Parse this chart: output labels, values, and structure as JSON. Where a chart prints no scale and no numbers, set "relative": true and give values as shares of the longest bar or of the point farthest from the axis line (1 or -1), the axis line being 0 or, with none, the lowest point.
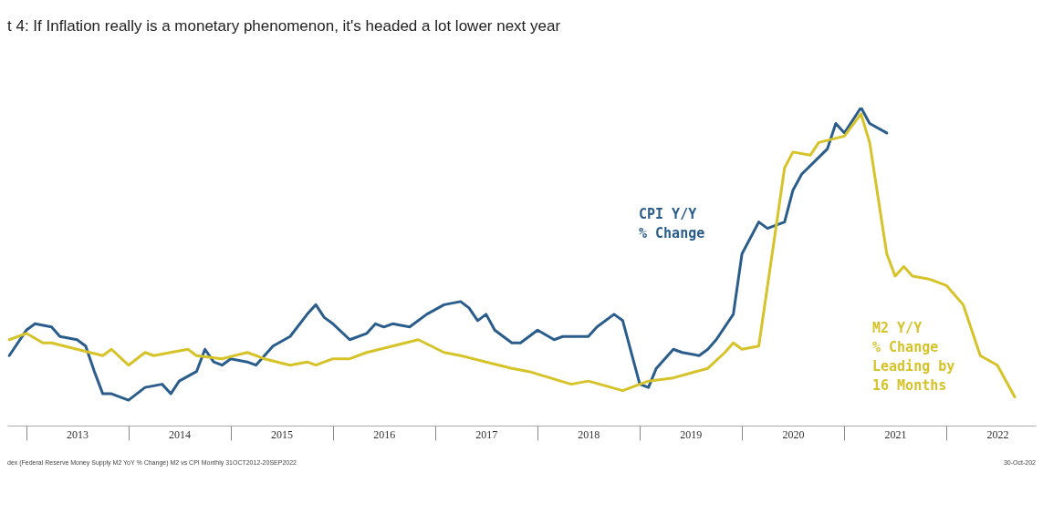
{
  "chart_data": {
    "type": "line",
    "title": "t 4: If Inflation really is a monetary phenomenon, it's headed a lot lower next year",
    "relative": true,
    "annotations": [
      "dex (Federal Reserve Money Supply M2 YoY % Change) M2 vs CPI Monthly 31OCT2012-20SEP2022",
      "30-Oct-202"
    ],
    "xlim": [
      "2012-10-25",
      "2022-11-15"
    ],
    "xticks": [
      {
        "value": "2013-01",
        "label": null
      },
      {
        "value": "2013-07",
        "label": "2013"
      },
      {
        "value": "2014-01",
        "label": null
      },
      {
        "value": "2014-07",
        "label": "2014"
      },
      {
        "value": "2015-01",
        "label": null
      },
      {
        "value": "2015-07",
        "label": "2015"
      },
      {
        "value": "2016-01",
        "label": null
      },
      {
        "value": "2016-07",
        "label": "2016"
      },
      {
        "value": "2017-01",
        "label": null
      },
      {
        "value": "2017-07",
        "label": "2017"
      },
      {
        "value": "2018-01",
        "label": null
      },
      {
        "value": "2018-07",
        "label": "2018"
      },
      {
        "value": "2019-01",
        "label": null
      },
      {
        "value": "2019-07",
        "label": "2019"
      },
      {
        "value": "2020-01",
        "label": null
      },
      {
        "value": "2020-07",
        "label": "2020"
      },
      {
        "value": "2021-01",
        "label": null
      },
      {
        "value": "2021-07",
        "label": "2021"
      },
      {
        "value": "2022-01",
        "label": null
      },
      {
        "value": "2022-07",
        "label": "2022"
      }
    ],
    "series": [
      {
        "name": "CPI Y/Y % Change",
        "color": "#2a5d8c",
        "x": [
          "2012-11",
          "2013-01",
          "2013-02",
          "2013-04",
          "2013-05",
          "2013-07",
          "2013-08",
          "2013-09",
          "2013-10",
          "2013-11",
          "2014-01",
          "2014-03",
          "2014-05",
          "2014-06",
          "2014-07",
          "2014-09",
          "2014-10",
          "2014-11",
          "2014-12",
          "2015-01",
          "2015-03",
          "2015-04",
          "2015-06",
          "2015-08",
          "2015-10",
          "2015-11",
          "2015-12",
          "2016-01",
          "2016-03",
          "2016-05",
          "2016-06",
          "2016-07",
          "2016-08",
          "2016-10",
          "2016-12",
          "2017-02",
          "2017-04",
          "2017-05",
          "2017-06",
          "2017-07",
          "2017-08",
          "2017-10",
          "2017-11",
          "2018-01",
          "2018-03",
          "2018-04",
          "2018-07",
          "2018-08",
          "2018-10",
          "2018-11",
          "2019-01",
          "2019-02",
          "2019-03",
          "2019-05",
          "2019-06",
          "2019-08",
          "2019-09",
          "2019-10",
          "2019-12",
          "2020-01",
          "2020-03",
          "2020-04",
          "2020-06",
          "2020-07",
          "2020-08",
          "2020-11",
          "2020-12",
          "2021-01",
          "2021-03",
          "2021-04",
          "2021-06"
        ],
        "values": [
          0.22,
          0.3,
          0.32,
          0.31,
          0.28,
          0.27,
          0.25,
          0.17,
          0.1,
          0.1,
          0.08,
          0.12,
          0.13,
          0.1,
          0.14,
          0.17,
          0.24,
          0.2,
          0.19,
          0.21,
          0.2,
          0.19,
          0.25,
          0.28,
          0.35,
          0.38,
          0.34,
          0.32,
          0.27,
          0.29,
          0.32,
          0.31,
          0.32,
          0.31,
          0.35,
          0.38,
          0.39,
          0.37,
          0.33,
          0.35,
          0.3,
          0.26,
          0.26,
          0.3,
          0.27,
          0.28,
          0.28,
          0.31,
          0.35,
          0.33,
          0.13,
          0.12,
          0.18,
          0.24,
          0.23,
          0.22,
          0.24,
          0.27,
          0.35,
          0.54,
          0.64,
          0.62,
          0.64,
          0.74,
          0.79,
          0.87,
          0.95,
          0.92,
          1,
          0.95,
          0.92
        ]
      },
      {
        "name": "M2 Y/Y % Change Leading by 16 Months",
        "color": "#d6c229",
        "x": [
          "2012-11",
          "2013-01",
          "2013-03",
          "2013-04",
          "2013-07",
          "2013-10",
          "2013-11",
          "2014-01",
          "2014-03",
          "2014-04",
          "2014-08",
          "2014-09",
          "2014-12",
          "2015-03",
          "2015-05",
          "2015-08",
          "2015-10",
          "2015-11",
          "2016-01",
          "2016-03",
          "2016-05",
          "2016-08",
          "2016-11",
          "2017-02",
          "2017-04",
          "2017-07",
          "2017-10",
          "2017-12",
          "2018-05",
          "2018-07",
          "2018-11",
          "2019-02",
          "2019-05",
          "2019-09",
          "2019-11",
          "2019-12",
          "2020-01",
          "2020-03",
          "2020-05",
          "2020-06",
          "2020-07",
          "2020-09",
          "2020-10",
          "2021-01",
          "2021-03",
          "2021-04",
          "2021-06",
          "2021-07",
          "2021-08",
          "2021-09",
          "2021-11",
          "2022-01",
          "2022-03",
          "2022-05",
          "2022-07",
          "2022-09"
        ],
        "values": [
          0.27,
          0.29,
          0.26,
          0.26,
          0.24,
          0.22,
          0.24,
          0.19,
          0.23,
          0.22,
          0.24,
          0.22,
          0.21,
          0.23,
          0.21,
          0.19,
          0.2,
          0.19,
          0.21,
          0.21,
          0.23,
          0.25,
          0.27,
          0.23,
          0.22,
          0.2,
          0.18,
          0.17,
          0.13,
          0.14,
          0.11,
          0.14,
          0.15,
          0.18,
          0.23,
          0.26,
          0.24,
          0.25,
          0.62,
          0.81,
          0.86,
          0.85,
          0.89,
          0.91,
          0.98,
          0.89,
          0.54,
          0.47,
          0.5,
          0.47,
          0.46,
          0.44,
          0.38,
          0.22,
          0.19,
          0.09
        ]
      }
    ]
  }
}
